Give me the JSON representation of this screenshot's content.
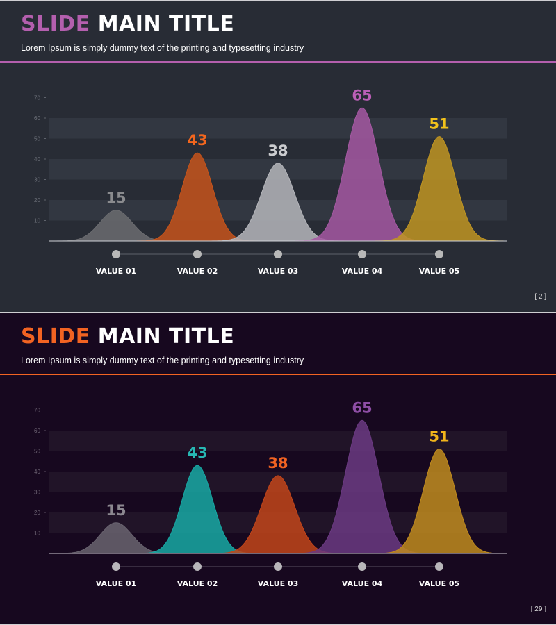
{
  "slides": [
    {
      "title_accent": "SLIDE",
      "title_rest": "MAIN TITLE",
      "subtitle": "Lorem Ipsum is simply dummy text of the printing and typesetting industry",
      "page_number": "[ 2 ]",
      "colors": {
        "background": "#282c35",
        "accent": "#b45fae",
        "band": "#323741",
        "tick": "#6e727b",
        "baseline": "#cfd2d8",
        "connector": "#5e626c",
        "dot": "#b8b8b8"
      },
      "chart_data": {
        "type": "area",
        "title": "",
        "xlabel": "",
        "ylabel": "",
        "ylim": [
          0,
          70
        ],
        "yticks": [
          10,
          20,
          30,
          40,
          50,
          60,
          70
        ],
        "categories": [
          "VALUE 01",
          "VALUE 02",
          "VALUE 03",
          "VALUE 04",
          "VALUE 05"
        ],
        "values": [
          15,
          43,
          38,
          65,
          51
        ],
        "value_labels": [
          "15",
          "43",
          "38",
          "65",
          "51"
        ],
        "series_colors": [
          "#6b6c70",
          "#c5541b",
          "#b5b6bb",
          "#a558a2",
          "#bf9522"
        ],
        "label_colors": [
          "#8a8b8e",
          "#f2661e",
          "#cbcccf",
          "#bb5fb6",
          "#f2c21b"
        ]
      }
    },
    {
      "title_accent": "SLIDE",
      "title_rest": "MAIN TITLE",
      "subtitle": "Lorem Ipsum is simply dummy text of the printing and typesetting industry",
      "page_number": "[ 29 ]",
      "colors": {
        "background": "#17081f",
        "accent": "#f26322",
        "band": "#211428",
        "tick": "#6f6575",
        "baseline": "#cfcad3",
        "connector": "#5a5160",
        "dot": "#b8b6ba"
      },
      "chart_data": {
        "type": "area",
        "title": "",
        "xlabel": "",
        "ylabel": "",
        "ylim": [
          0,
          70
        ],
        "yticks": [
          10,
          20,
          30,
          40,
          50,
          60,
          70
        ],
        "categories": [
          "VALUE 01",
          "VALUE 02",
          "VALUE 03",
          "VALUE 04",
          "VALUE 05"
        ],
        "values": [
          15,
          43,
          38,
          65,
          51
        ],
        "value_labels": [
          "15",
          "43",
          "38",
          "65",
          "51"
        ],
        "series_colors": [
          "#6a6470",
          "#17a9a4",
          "#c2451a",
          "#6b3a82",
          "#c08b1f"
        ],
        "label_colors": [
          "#8c8890",
          "#27b7b3",
          "#f26322",
          "#8e4ea5",
          "#f2b51b"
        ]
      }
    }
  ]
}
